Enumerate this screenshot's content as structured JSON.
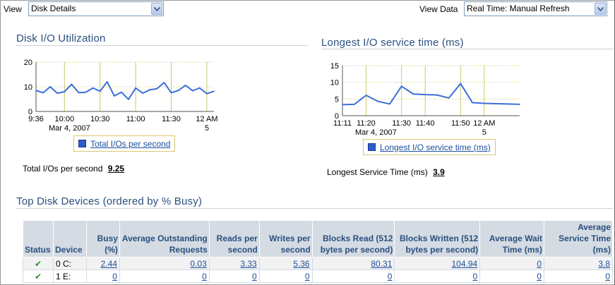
{
  "toolbar": {
    "view_label": "View",
    "view_value": "Disk Details",
    "view_data_label": "View Data",
    "view_data_value": "Real Time: Manual Refresh"
  },
  "util_chart": {
    "title": "Disk I/O Utilization",
    "legend": "Total I/Os per second",
    "stat_label": "Total I/Os per second",
    "stat_value": "9.25",
    "date_label": "Mar 4, 2007",
    "x_end_sub": "5"
  },
  "service_chart": {
    "title": "Longest I/O service time (ms)",
    "legend": "Longest I/O service time (ms)",
    "stat_label": "Longest Service Time (ms)",
    "stat_value": "3.9",
    "date_label": "Mar 4, 2007",
    "x_end_sub": "5"
  },
  "chart_data": [
    {
      "type": "line",
      "title": "Disk I/O Utilization",
      "x": [
        "9:36",
        "9:42",
        "9:48",
        "9:54",
        "10:00",
        "10:06",
        "10:12",
        "10:18",
        "10:24",
        "10:30",
        "10:36",
        "10:42",
        "10:48",
        "10:54",
        "11:00",
        "11:06",
        "11:12",
        "11:18",
        "11:24",
        "11:30",
        "11:36",
        "11:42",
        "11:48",
        "11:54",
        "12:00",
        "12:06"
      ],
      "x_ticks": [
        "9:36",
        "10:00",
        "10:30",
        "11:00",
        "11:30",
        "12 AM"
      ],
      "series": [
        {
          "name": "Total I/Os per second",
          "values": [
            8.5,
            7.6,
            10,
            7.4,
            8,
            11,
            7.6,
            7.8,
            9.5,
            8.2,
            12,
            6.3,
            7.8,
            4.9,
            9.5,
            7.4,
            8.8,
            9.2,
            11.7,
            7.6,
            8.5,
            10.6,
            8.4,
            9.5,
            7.2,
            8.2
          ]
        }
      ],
      "ylim": [
        0,
        20
      ],
      "y_ticks": [
        0,
        10,
        20
      ],
      "color": "#3b6fd8"
    },
    {
      "type": "line",
      "title": "Longest I/O service time (ms)",
      "x": [
        "11:11",
        "11:15",
        "11:19",
        "11:23",
        "11:27",
        "11:31",
        "11:35",
        "11:39",
        "11:43",
        "11:47",
        "11:51",
        "11:55",
        "11:59",
        "12:03",
        "12:07",
        "12:11"
      ],
      "x_ticks": [
        "11:11",
        "11:20",
        "11:30",
        "11:40",
        "11:50",
        "12 AM"
      ],
      "series": [
        {
          "name": "Longest I/O service time (ms)",
          "values": [
            3.3,
            3.4,
            6.1,
            4.3,
            3.5,
            8.8,
            6.5,
            6.3,
            6.2,
            5.3,
            9.6,
            3.9,
            3.7,
            3.6,
            3.5,
            3.4
          ]
        }
      ],
      "ylim": [
        0,
        15
      ],
      "y_ticks": [
        0,
        5,
        10,
        15
      ],
      "color": "#3b6fd8"
    }
  ],
  "devices": {
    "title": "Top Disk Devices (ordered by % Busy)",
    "headers": {
      "status": "Status",
      "device": "Device",
      "busy": "Busy (%)",
      "avg_outstanding": "Average Outstanding Requests",
      "reads": "Reads per second",
      "writes": "Writes per second",
      "blocks_read": "Blocks Read (512 bytes per second)",
      "blocks_written": "Blocks Written (512 bytes per second)",
      "avg_wait": "Average Wait Time (ms)",
      "avg_service": "Average Service Time (ms)"
    },
    "rows": [
      {
        "status": "✔",
        "device": "0 C:",
        "busy": "2.44",
        "avg_outstanding": "0.03",
        "reads": "3.33",
        "writes": "5.36",
        "blocks_read": "80.31",
        "blocks_written": "104.94",
        "avg_wait": "0",
        "avg_service": "3.8"
      },
      {
        "status": "✔",
        "device": "1 E:",
        "busy": "0",
        "avg_outstanding": "0",
        "reads": "0",
        "writes": "0",
        "blocks_read": "0",
        "blocks_written": "0",
        "avg_wait": "0",
        "avg_service": "0"
      }
    ]
  }
}
